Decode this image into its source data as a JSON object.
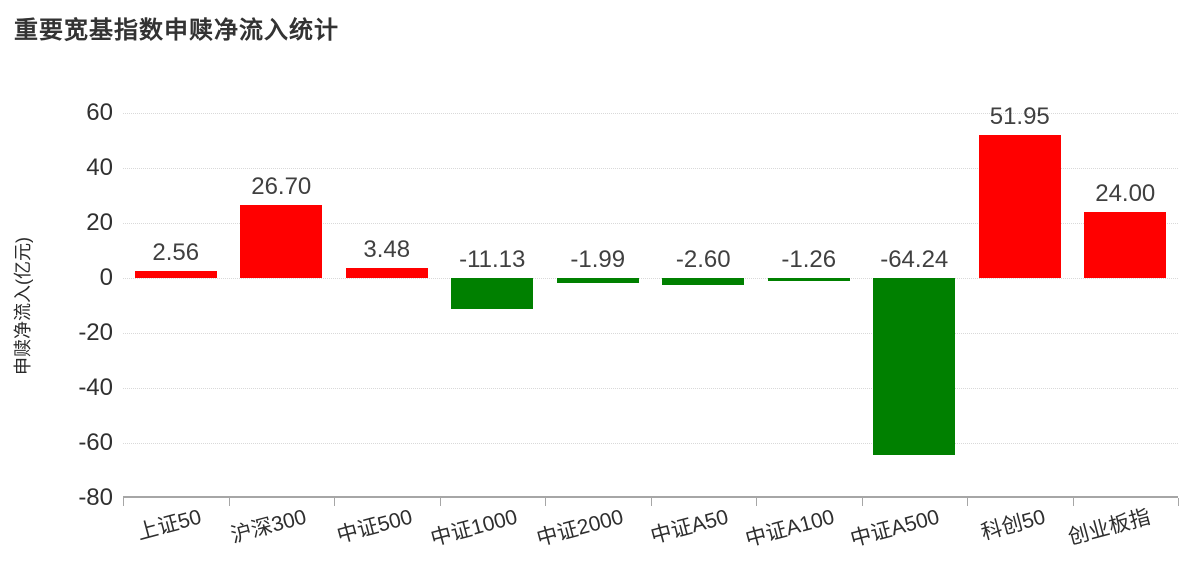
{
  "title": "重要宽基指数申赎净流入统计",
  "chart_data": {
    "type": "bar",
    "title": "重要宽基指数申赎净流入统计",
    "categories": [
      "上证50",
      "沪深300",
      "中证500",
      "中证1000",
      "中证2000",
      "中证A50",
      "中证A100",
      "中证A500",
      "科创50",
      "创业板指"
    ],
    "values": [
      2.56,
      26.7,
      3.48,
      -11.13,
      -1.99,
      -2.6,
      -1.26,
      -64.24,
      51.95,
      24.0
    ],
    "data_labels": [
      "2.56",
      "26.70",
      "3.48",
      "-11.13",
      "-1.99",
      "-2.60",
      "-1.26",
      "-64.24",
      "51.95",
      "24.00"
    ],
    "xlabel": "",
    "ylabel": "申赎净流入(亿元)",
    "ylim": [
      -80,
      60
    ],
    "yticks": [
      60,
      40,
      20,
      0,
      -20,
      -40,
      -60,
      -80
    ],
    "grid": "horizontal-dotted",
    "legend": "none",
    "colors": {
      "positive": "#ff0000",
      "negative": "#008000"
    }
  }
}
